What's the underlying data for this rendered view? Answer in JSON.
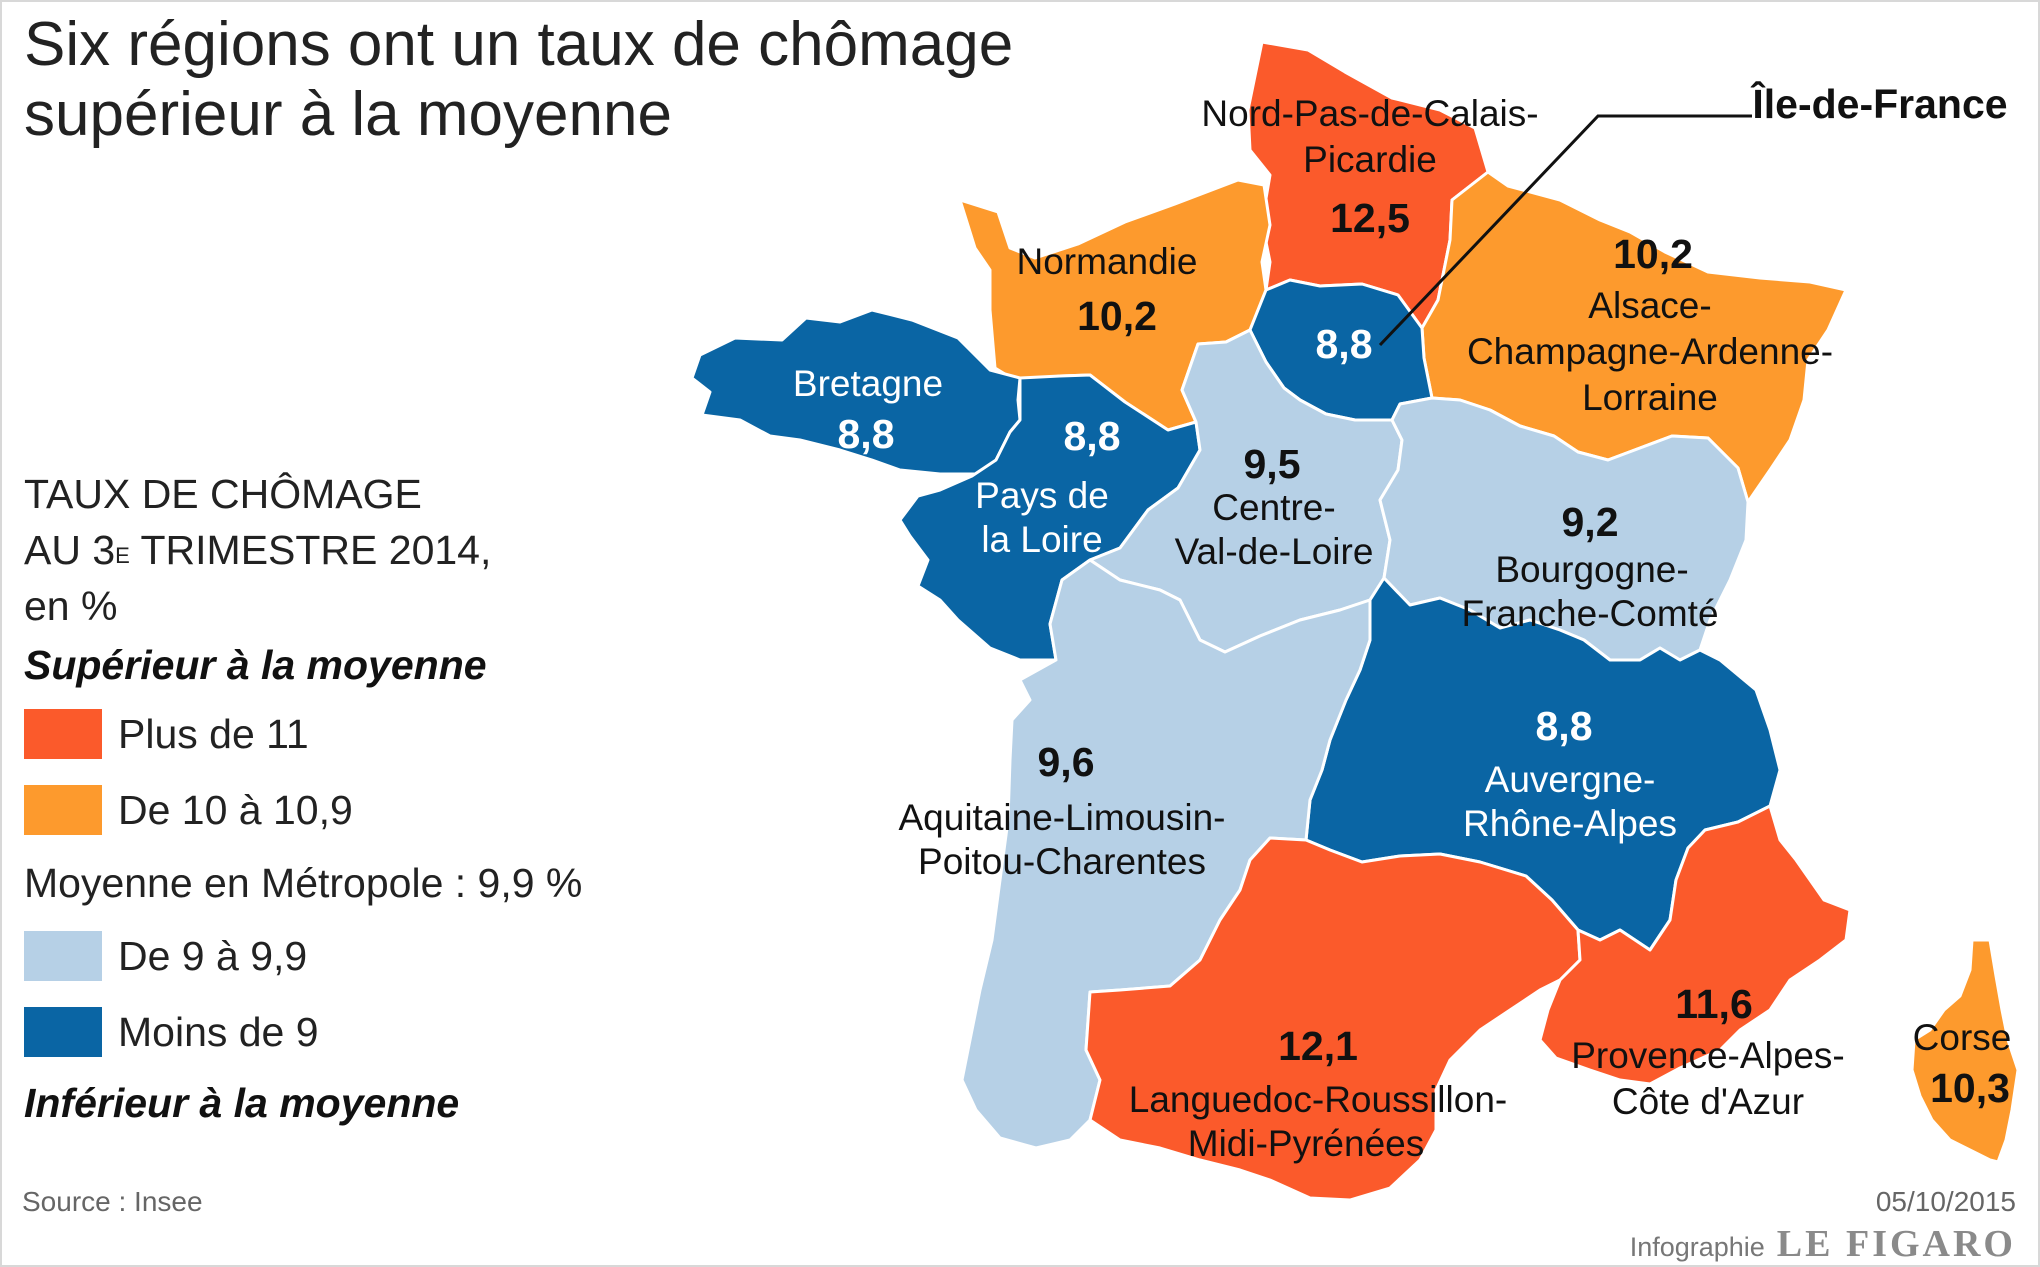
{
  "title": {
    "line1": "Six régions ont un taux de chômage",
    "line2": "supérieur à la moyenne"
  },
  "legend": {
    "heading_line1": "TAUX DE CHÔMAGE",
    "heading_line2_pre": "AU 3",
    "heading_line2_sup": "E",
    "heading_line2_post": " TRIMESTRE 2014,",
    "heading_line3": "en %",
    "above_label": "Supérieur à la moyenne",
    "below_label": "Inférieur à la moyenne",
    "average_label": "Moyenne en Métropole : 9,9 %",
    "items": [
      {
        "label": "Plus de 11",
        "color": "#fb5a2b"
      },
      {
        "label": "De 10 à 10,9",
        "color": "#fd9a2d"
      },
      {
        "label": "De 9 à 9,9",
        "color": "#b6d0e6"
      },
      {
        "label": "Moins de 9",
        "color": "#0a65a4"
      }
    ]
  },
  "regions": {
    "nord": {
      "name1": "Nord-Pas-de-Calais-",
      "name2": "Picardie",
      "value": "12,5",
      "color": "#fb5a2b"
    },
    "normandie": {
      "name1": "Normandie",
      "value": "10,2",
      "color": "#fd9a2d"
    },
    "idf": {
      "name1": "Île-de-France",
      "value": "8,8",
      "color": "#0a65a4"
    },
    "alsace": {
      "name1": "Alsace-",
      "name2": "Champagne-Ardenne-",
      "name3": "Lorraine",
      "value": "10,2",
      "color": "#fd9a2d"
    },
    "bretagne": {
      "name1": "Bretagne",
      "value": "8,8",
      "color": "#0a65a4"
    },
    "pdl": {
      "name1": "Pays de",
      "name2": "la Loire",
      "value": "8,8",
      "color": "#0a65a4"
    },
    "centre": {
      "name1": "Centre-",
      "name2": "Val-de-Loire",
      "value": "9,5",
      "color": "#b6d0e6"
    },
    "bourgogne": {
      "name1": "Bourgogne-",
      "name2": "Franche-Comté",
      "value": "9,2",
      "color": "#b6d0e6"
    },
    "aquitaine": {
      "name1": "Aquitaine-Limousin-",
      "name2": "Poitou-Charentes",
      "value": "9,6",
      "color": "#b6d0e6"
    },
    "auvergne": {
      "name1": "Auvergne-",
      "name2": "Rhône-Alpes",
      "value": "8,8",
      "color": "#0a65a4"
    },
    "languedoc": {
      "name1": "Languedoc-Roussillon-",
      "name2": "Midi-Pyrénées",
      "value": "12,1",
      "color": "#fb5a2b"
    },
    "paca": {
      "name1": "Provence-Alpes-",
      "name2": "Côte d'Azur",
      "value": "11,6",
      "color": "#fb5a2b"
    },
    "corse": {
      "name1": "Corse",
      "value": "10,3",
      "color": "#fd9a2d"
    }
  },
  "footer": {
    "source": "Source : Insee",
    "date": "05/10/2015",
    "credit_prefix": "Infographie",
    "credit_brand": "LE FIGARO"
  }
}
